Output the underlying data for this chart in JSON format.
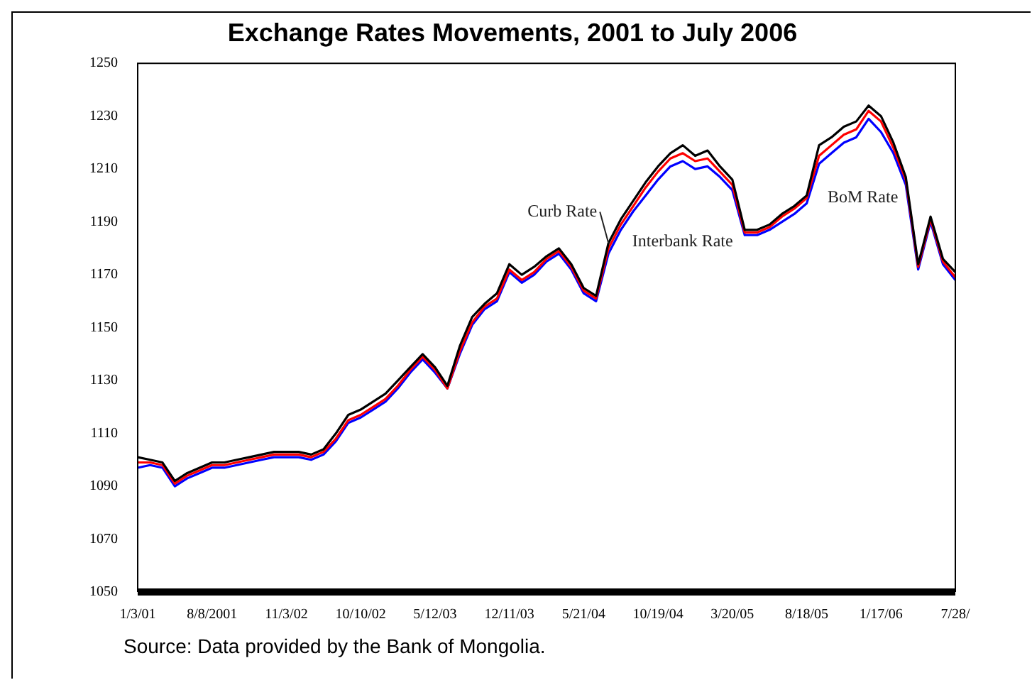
{
  "chart_data": {
    "type": "line",
    "title": "Exchange Rates Movements, 2001 to July 2006",
    "categories": [
      "1/3/01",
      null,
      null,
      null,
      null,
      null,
      "8/8/2001",
      null,
      null,
      null,
      null,
      null,
      "11/3/02",
      null,
      null,
      null,
      null,
      null,
      "10/10/02",
      null,
      null,
      null,
      null,
      null,
      "5/12/03",
      null,
      null,
      null,
      null,
      null,
      "12/11/03",
      null,
      null,
      null,
      null,
      null,
      "5/21/04",
      null,
      null,
      null,
      null,
      null,
      "10/19/04",
      null,
      null,
      null,
      null,
      null,
      "3/20/05",
      null,
      null,
      null,
      null,
      null,
      "8/18/05",
      null,
      null,
      null,
      null,
      null,
      "1/17/06",
      null,
      null,
      null,
      null,
      null,
      "7/28/"
    ],
    "series": [
      {
        "name": "Curb Rate",
        "color": "#000000",
        "values": [
          1101,
          1100,
          1099,
          1092,
          1095,
          1097,
          1099,
          1099,
          1100,
          1101,
          1102,
          1103,
          1103,
          1103,
          1102,
          1104,
          1110,
          1117,
          1119,
          1122,
          1125,
          1130,
          1135,
          1140,
          1135,
          1128,
          1143,
          1154,
          1159,
          1163,
          1174,
          1170,
          1173,
          1177,
          1180,
          1174,
          1165,
          1162,
          1182,
          1191,
          1198,
          1205,
          1211,
          1216,
          1219,
          1215,
          1217,
          1211,
          1206,
          1187,
          1187,
          1189,
          1193,
          1196,
          1200,
          1219,
          1222,
          1226,
          1228,
          1234,
          1230,
          1220,
          1207,
          1174,
          1192,
          1176,
          1171
        ]
      },
      {
        "name": "Interbank Rate",
        "color": "#ff0000",
        "values": [
          1099,
          1099,
          1098,
          1091,
          1094,
          1096,
          1098,
          1098,
          1099,
          1100,
          1101,
          1102,
          1102,
          1102,
          1101,
          1103,
          1108,
          1115,
          1117,
          1120,
          1123,
          1128,
          1134,
          1139,
          1134,
          1127,
          1141,
          1152,
          1158,
          1161,
          1172,
          1168,
          1171,
          1176,
          1179,
          1173,
          1164,
          1161,
          1180,
          1189,
          1196,
          1203,
          1209,
          1214,
          1216,
          1213,
          1214,
          1209,
          1204,
          1186,
          1186,
          1188,
          1192,
          1195,
          1199,
          1215,
          1219,
          1223,
          1225,
          1232,
          1228,
          1218,
          1206,
          1173,
          1191,
          1175,
          1169
        ]
      },
      {
        "name": "BoM Rate",
        "color": "#0000ff",
        "values": [
          1097,
          1098,
          1097,
          1090,
          1093,
          1095,
          1097,
          1097,
          1098,
          1099,
          1100,
          1101,
          1101,
          1101,
          1100,
          1102,
          1107,
          1114,
          1116,
          1119,
          1122,
          1127,
          1133,
          1138,
          1133,
          1127,
          1140,
          1151,
          1157,
          1160,
          1171,
          1167,
          1170,
          1175,
          1178,
          1172,
          1163,
          1160,
          1178,
          1187,
          1194,
          1200,
          1206,
          1211,
          1213,
          1210,
          1211,
          1207,
          1202,
          1185,
          1185,
          1187,
          1190,
          1193,
          1197,
          1212,
          1216,
          1220,
          1222,
          1229,
          1224,
          1216,
          1204,
          1172,
          1190,
          1174,
          1168
        ]
      }
    ],
    "ylim": [
      1050,
      1250
    ],
    "yticks": [
      1050,
      1070,
      1090,
      1110,
      1130,
      1150,
      1170,
      1190,
      1210,
      1230,
      1250
    ],
    "grid": false,
    "legend": false,
    "marker": "none",
    "line_style": "solid",
    "annotations": [
      "Source: Data provided by the Bank of Mongolia."
    ]
  }
}
